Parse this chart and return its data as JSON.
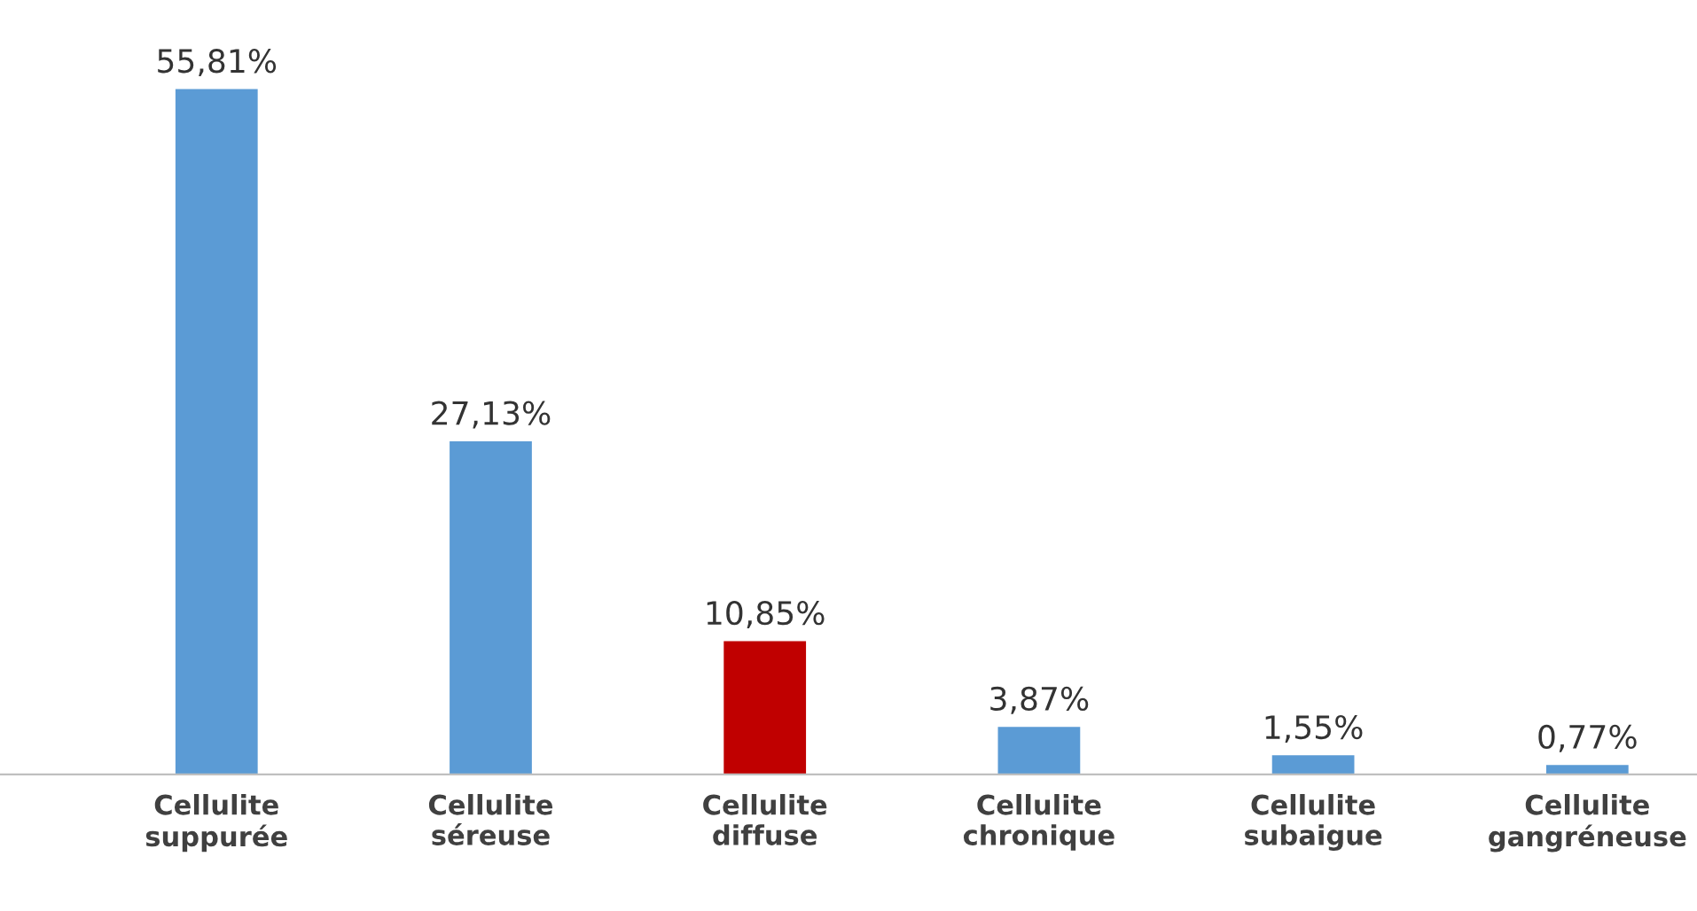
{
  "chart_data": {
    "type": "bar",
    "categories": [
      "Cellulite\nsuppurée",
      "Cellulite\nséreuse",
      "Cellulite\ndiffuse",
      "Cellulite\nchronique",
      "Cellulite\nsubaigue",
      "Cellulite\ngangréneuse"
    ],
    "values": [
      55.81,
      27.13,
      10.85,
      3.87,
      1.55,
      0.77
    ],
    "colors": [
      "#5b9bd5",
      "#5b9bd5",
      "#c00000",
      "#5b9bd5",
      "#5b9bd5",
      "#5b9bd5"
    ],
    "value_labels": [
      "55,81%",
      "27,13%",
      "10,85%",
      "3,87%",
      "1,55%",
      "0,77%"
    ],
    "grid": false,
    "legend": false
  }
}
